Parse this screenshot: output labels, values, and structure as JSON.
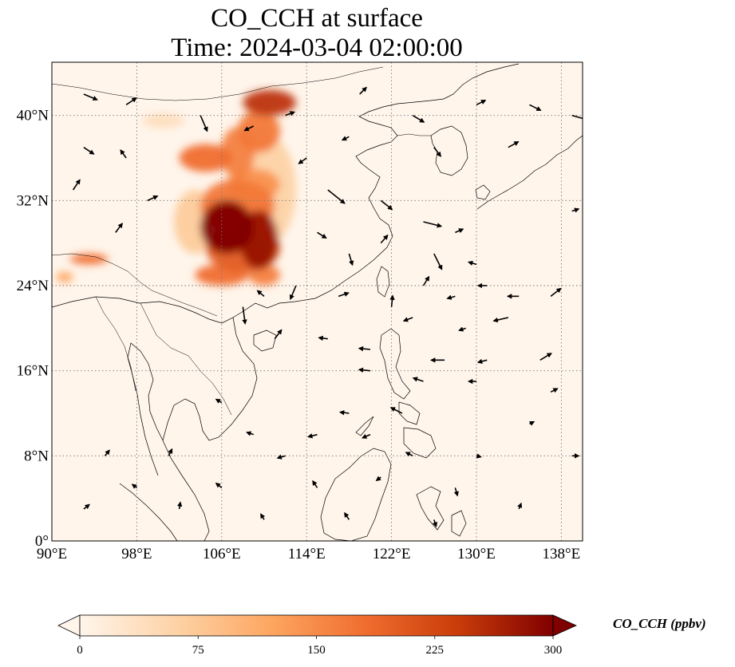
{
  "figure": {
    "title_line1": "CO_CCH at surface",
    "title_line2": "Time: 2024-03-04 02:00:00"
  },
  "map": {
    "lon_range": [
      90,
      140
    ],
    "lat_range": [
      0,
      45
    ],
    "gridline_style": "dotted",
    "x_ticks": [
      {
        "value": 90,
        "label": "90°E"
      },
      {
        "value": 98,
        "label": "98°E"
      },
      {
        "value": 106,
        "label": "106°E"
      },
      {
        "value": 114,
        "label": "114°E"
      },
      {
        "value": 122,
        "label": "122°E"
      },
      {
        "value": 130,
        "label": "130°E"
      },
      {
        "value": 138,
        "label": "138°E"
      }
    ],
    "y_ticks": [
      {
        "value": 0,
        "label": "0°"
      },
      {
        "value": 8,
        "label": "8°N"
      },
      {
        "value": 16,
        "label": "16°N"
      },
      {
        "value": 24,
        "label": "24°N"
      },
      {
        "value": 32,
        "label": "32°N"
      },
      {
        "value": 40,
        "label": "40°N"
      }
    ],
    "background_color": "#fff5eb",
    "coast_color": "#000000"
  },
  "colorbar": {
    "label": "CO_CCH (ppbv)",
    "min": 0,
    "max": 300,
    "extend": "both",
    "ticks": [
      {
        "value": 0,
        "label": "0"
      },
      {
        "value": 75,
        "label": "75"
      },
      {
        "value": 150,
        "label": "150"
      },
      {
        "value": 225,
        "label": "225"
      },
      {
        "value": 300,
        "label": "300"
      }
    ],
    "colors": [
      "#fff5eb",
      "#fdd3a7",
      "#fda762",
      "#f06e2f",
      "#c93c0a",
      "#7f0000"
    ]
  },
  "chart_data": {
    "type": "heatmap",
    "title": "CO_CCH at surface\nTime: 2024-03-04 02:00:00",
    "xlim": [
      90,
      140
    ],
    "ylim": [
      0,
      45
    ],
    "colorbar_range": [
      0,
      300
    ],
    "plumes": [
      {
        "lon": 106.5,
        "lat": 29.5,
        "rx": 2.5,
        "ry": 2.5,
        "value": 300
      },
      {
        "lon": 109.5,
        "lat": 28.3,
        "rx": 1.8,
        "ry": 2.8,
        "value": 280
      },
      {
        "lon": 108.0,
        "lat": 27.5,
        "rx": 3.5,
        "ry": 2.2,
        "value": 200
      },
      {
        "lon": 107.5,
        "lat": 31.5,
        "rx": 3.5,
        "ry": 2.5,
        "value": 170
      },
      {
        "lon": 109.0,
        "lat": 33.5,
        "rx": 2.5,
        "ry": 1.5,
        "value": 140
      },
      {
        "lon": 107.5,
        "lat": 36.5,
        "rx": 1.6,
        "ry": 2.4,
        "value": 160
      },
      {
        "lon": 104.5,
        "lat": 36.0,
        "rx": 2.5,
        "ry": 1.3,
        "value": 180
      },
      {
        "lon": 109.5,
        "lat": 38.5,
        "rx": 2.0,
        "ry": 2.0,
        "value": 170
      },
      {
        "lon": 110.5,
        "lat": 41.2,
        "rx": 2.5,
        "ry": 1.2,
        "value": 250
      },
      {
        "lon": 106.0,
        "lat": 25.0,
        "rx": 2.5,
        "ry": 1.0,
        "value": 180
      },
      {
        "lon": 110.0,
        "lat": 25.0,
        "rx": 1.5,
        "ry": 1.0,
        "value": 160
      },
      {
        "lon": 93.5,
        "lat": 26.5,
        "rx": 1.8,
        "ry": 0.5,
        "value": 180
      },
      {
        "lon": 91.2,
        "lat": 24.8,
        "rx": 0.8,
        "ry": 0.5,
        "value": 120
      },
      {
        "lon": 103.5,
        "lat": 30.0,
        "rx": 2.0,
        "ry": 3.0,
        "value": 70
      },
      {
        "lon": 110.5,
        "lat": 33.0,
        "rx": 2.5,
        "ry": 5.0,
        "value": 60
      },
      {
        "lon": 100.5,
        "lat": 39.5,
        "rx": 2.0,
        "ry": 0.7,
        "value": 40
      }
    ],
    "wind_vectors": [
      {
        "lon": 93,
        "lat": 42,
        "u": 1.2,
        "v": -0.5
      },
      {
        "lon": 97,
        "lat": 41,
        "u": 0.9,
        "v": 0.6
      },
      {
        "lon": 104,
        "lat": 40,
        "u": 0.6,
        "v": -1.4
      },
      {
        "lon": 109,
        "lat": 39,
        "u": -0.8,
        "v": -0.4
      },
      {
        "lon": 112,
        "lat": 40,
        "u": 0.8,
        "v": 0.3
      },
      {
        "lon": 119,
        "lat": 42,
        "u": 0.6,
        "v": 0.6
      },
      {
        "lon": 124,
        "lat": 40,
        "u": 1.0,
        "v": -0.6
      },
      {
        "lon": 130,
        "lat": 41,
        "u": 0.8,
        "v": 0.4
      },
      {
        "lon": 135,
        "lat": 41,
        "u": 1.0,
        "v": -0.5
      },
      {
        "lon": 139,
        "lat": 40,
        "u": 1.4,
        "v": -0.4
      },
      {
        "lon": 93,
        "lat": 37,
        "u": 0.9,
        "v": -0.6
      },
      {
        "lon": 97,
        "lat": 36,
        "u": -0.5,
        "v": 0.7
      },
      {
        "lon": 114,
        "lat": 36,
        "u": -0.7,
        "v": -0.5
      },
      {
        "lon": 118,
        "lat": 38,
        "u": -0.6,
        "v": -0.3
      },
      {
        "lon": 126,
        "lat": 37,
        "u": 0.6,
        "v": -0.8
      },
      {
        "lon": 133,
        "lat": 37,
        "u": 0.9,
        "v": 0.5
      },
      {
        "lon": 92,
        "lat": 33,
        "u": 0.6,
        "v": 0.9
      },
      {
        "lon": 99,
        "lat": 32,
        "u": 0.9,
        "v": 0.4
      },
      {
        "lon": 116,
        "lat": 33,
        "u": 1.5,
        "v": -1.2
      },
      {
        "lon": 121,
        "lat": 32,
        "u": 1.0,
        "v": -0.8
      },
      {
        "lon": 125,
        "lat": 30,
        "u": 1.6,
        "v": -0.4
      },
      {
        "lon": 128,
        "lat": 29,
        "u": 0.7,
        "v": 0.3
      },
      {
        "lon": 139,
        "lat": 31,
        "u": 0.6,
        "v": 0.2
      },
      {
        "lon": 96,
        "lat": 29,
        "u": 0.6,
        "v": 0.8
      },
      {
        "lon": 115,
        "lat": 29,
        "u": 0.8,
        "v": -0.5
      },
      {
        "lon": 121,
        "lat": 28,
        "u": 0.6,
        "v": 0.7
      },
      {
        "lon": 126,
        "lat": 27,
        "u": 0.7,
        "v": -1.4
      },
      {
        "lon": 118,
        "lat": 27,
        "u": 0.3,
        "v": -1.0
      },
      {
        "lon": 130,
        "lat": 26,
        "u": -0.7,
        "v": 0.2
      },
      {
        "lon": 113,
        "lat": 24,
        "u": -0.5,
        "v": -1.2
      },
      {
        "lon": 110,
        "lat": 23,
        "u": -0.6,
        "v": 0.5
      },
      {
        "lon": 108,
        "lat": 22,
        "u": 0.2,
        "v": -1.5
      },
      {
        "lon": 117,
        "lat": 23,
        "u": 0.9,
        "v": 0.3
      },
      {
        "lon": 122,
        "lat": 22,
        "u": 0.1,
        "v": 1.0
      },
      {
        "lon": 125,
        "lat": 24,
        "u": 0.5,
        "v": 0.8
      },
      {
        "lon": 128,
        "lat": 23,
        "u": -0.7,
        "v": -0.2
      },
      {
        "lon": 131,
        "lat": 24,
        "u": -0.8,
        "v": 0.0
      },
      {
        "lon": 134,
        "lat": 23,
        "u": -1.0,
        "v": 0.0
      },
      {
        "lon": 137,
        "lat": 23,
        "u": 0.9,
        "v": 0.7
      },
      {
        "lon": 124,
        "lat": 21,
        "u": -0.8,
        "v": -0.3
      },
      {
        "lon": 129,
        "lat": 20,
        "u": -0.6,
        "v": -0.2
      },
      {
        "lon": 133,
        "lat": 21,
        "u": -1.3,
        "v": -0.3
      },
      {
        "lon": 111,
        "lat": 19,
        "u": 0.6,
        "v": 0.8
      },
      {
        "lon": 116,
        "lat": 19,
        "u": -0.8,
        "v": 0.1
      },
      {
        "lon": 120,
        "lat": 18,
        "u": -1.0,
        "v": 0.1
      },
      {
        "lon": 127,
        "lat": 17,
        "u": -1.2,
        "v": 0.0
      },
      {
        "lon": 131,
        "lat": 17,
        "u": -0.8,
        "v": -0.2
      },
      {
        "lon": 136,
        "lat": 17,
        "u": 1.0,
        "v": 0.6
      },
      {
        "lon": 120,
        "lat": 16,
        "u": -1.0,
        "v": 0.1
      },
      {
        "lon": 125,
        "lat": 15,
        "u": -0.9,
        "v": 0.3
      },
      {
        "lon": 130,
        "lat": 15,
        "u": -0.7,
        "v": 0.0
      },
      {
        "lon": 137,
        "lat": 14,
        "u": 0.6,
        "v": 0.3
      },
      {
        "lon": 106,
        "lat": 13,
        "u": -0.5,
        "v": 0.3
      },
      {
        "lon": 118,
        "lat": 12,
        "u": -0.8,
        "v": 0.1
      },
      {
        "lon": 123,
        "lat": 12,
        "u": -1.0,
        "v": 0.5
      },
      {
        "lon": 109,
        "lat": 10,
        "u": -0.6,
        "v": 0.2
      },
      {
        "lon": 115,
        "lat": 10,
        "u": -0.8,
        "v": -0.2
      },
      {
        "lon": 120,
        "lat": 10,
        "u": -0.7,
        "v": -0.3
      },
      {
        "lon": 95,
        "lat": 8,
        "u": 0.4,
        "v": 0.5
      },
      {
        "lon": 101,
        "lat": 8,
        "u": 0.3,
        "v": 0.6
      },
      {
        "lon": 112,
        "lat": 8,
        "u": -0.7,
        "v": -0.2
      },
      {
        "lon": 124,
        "lat": 8,
        "u": -0.6,
        "v": 0.3
      },
      {
        "lon": 130,
        "lat": 8,
        "u": 0.4,
        "v": -0.1
      },
      {
        "lon": 139,
        "lat": 8,
        "u": 0.6,
        "v": 0.0
      },
      {
        "lon": 98,
        "lat": 5,
        "u": -0.4,
        "v": 0.3
      },
      {
        "lon": 106,
        "lat": 5,
        "u": -0.5,
        "v": 0.4
      },
      {
        "lon": 115,
        "lat": 5,
        "u": -0.4,
        "v": 0.6
      },
      {
        "lon": 121,
        "lat": 6,
        "u": -0.4,
        "v": -0.3
      },
      {
        "lon": 128,
        "lat": 5,
        "u": 0.2,
        "v": -0.7
      },
      {
        "lon": 93,
        "lat": 3,
        "u": 0.5,
        "v": 0.4
      },
      {
        "lon": 102,
        "lat": 3,
        "u": 0.1,
        "v": 0.6
      },
      {
        "lon": 110,
        "lat": 2,
        "u": -0.3,
        "v": 0.5
      },
      {
        "lon": 118,
        "lat": 2,
        "u": -0.4,
        "v": 0.6
      },
      {
        "lon": 126,
        "lat": 2,
        "u": 0.2,
        "v": -0.6
      },
      {
        "lon": 134,
        "lat": 3,
        "u": 0.2,
        "v": 0.5
      },
      {
        "lon": 135,
        "lat": 11,
        "u": 0.4,
        "v": 0.2
      }
    ]
  }
}
